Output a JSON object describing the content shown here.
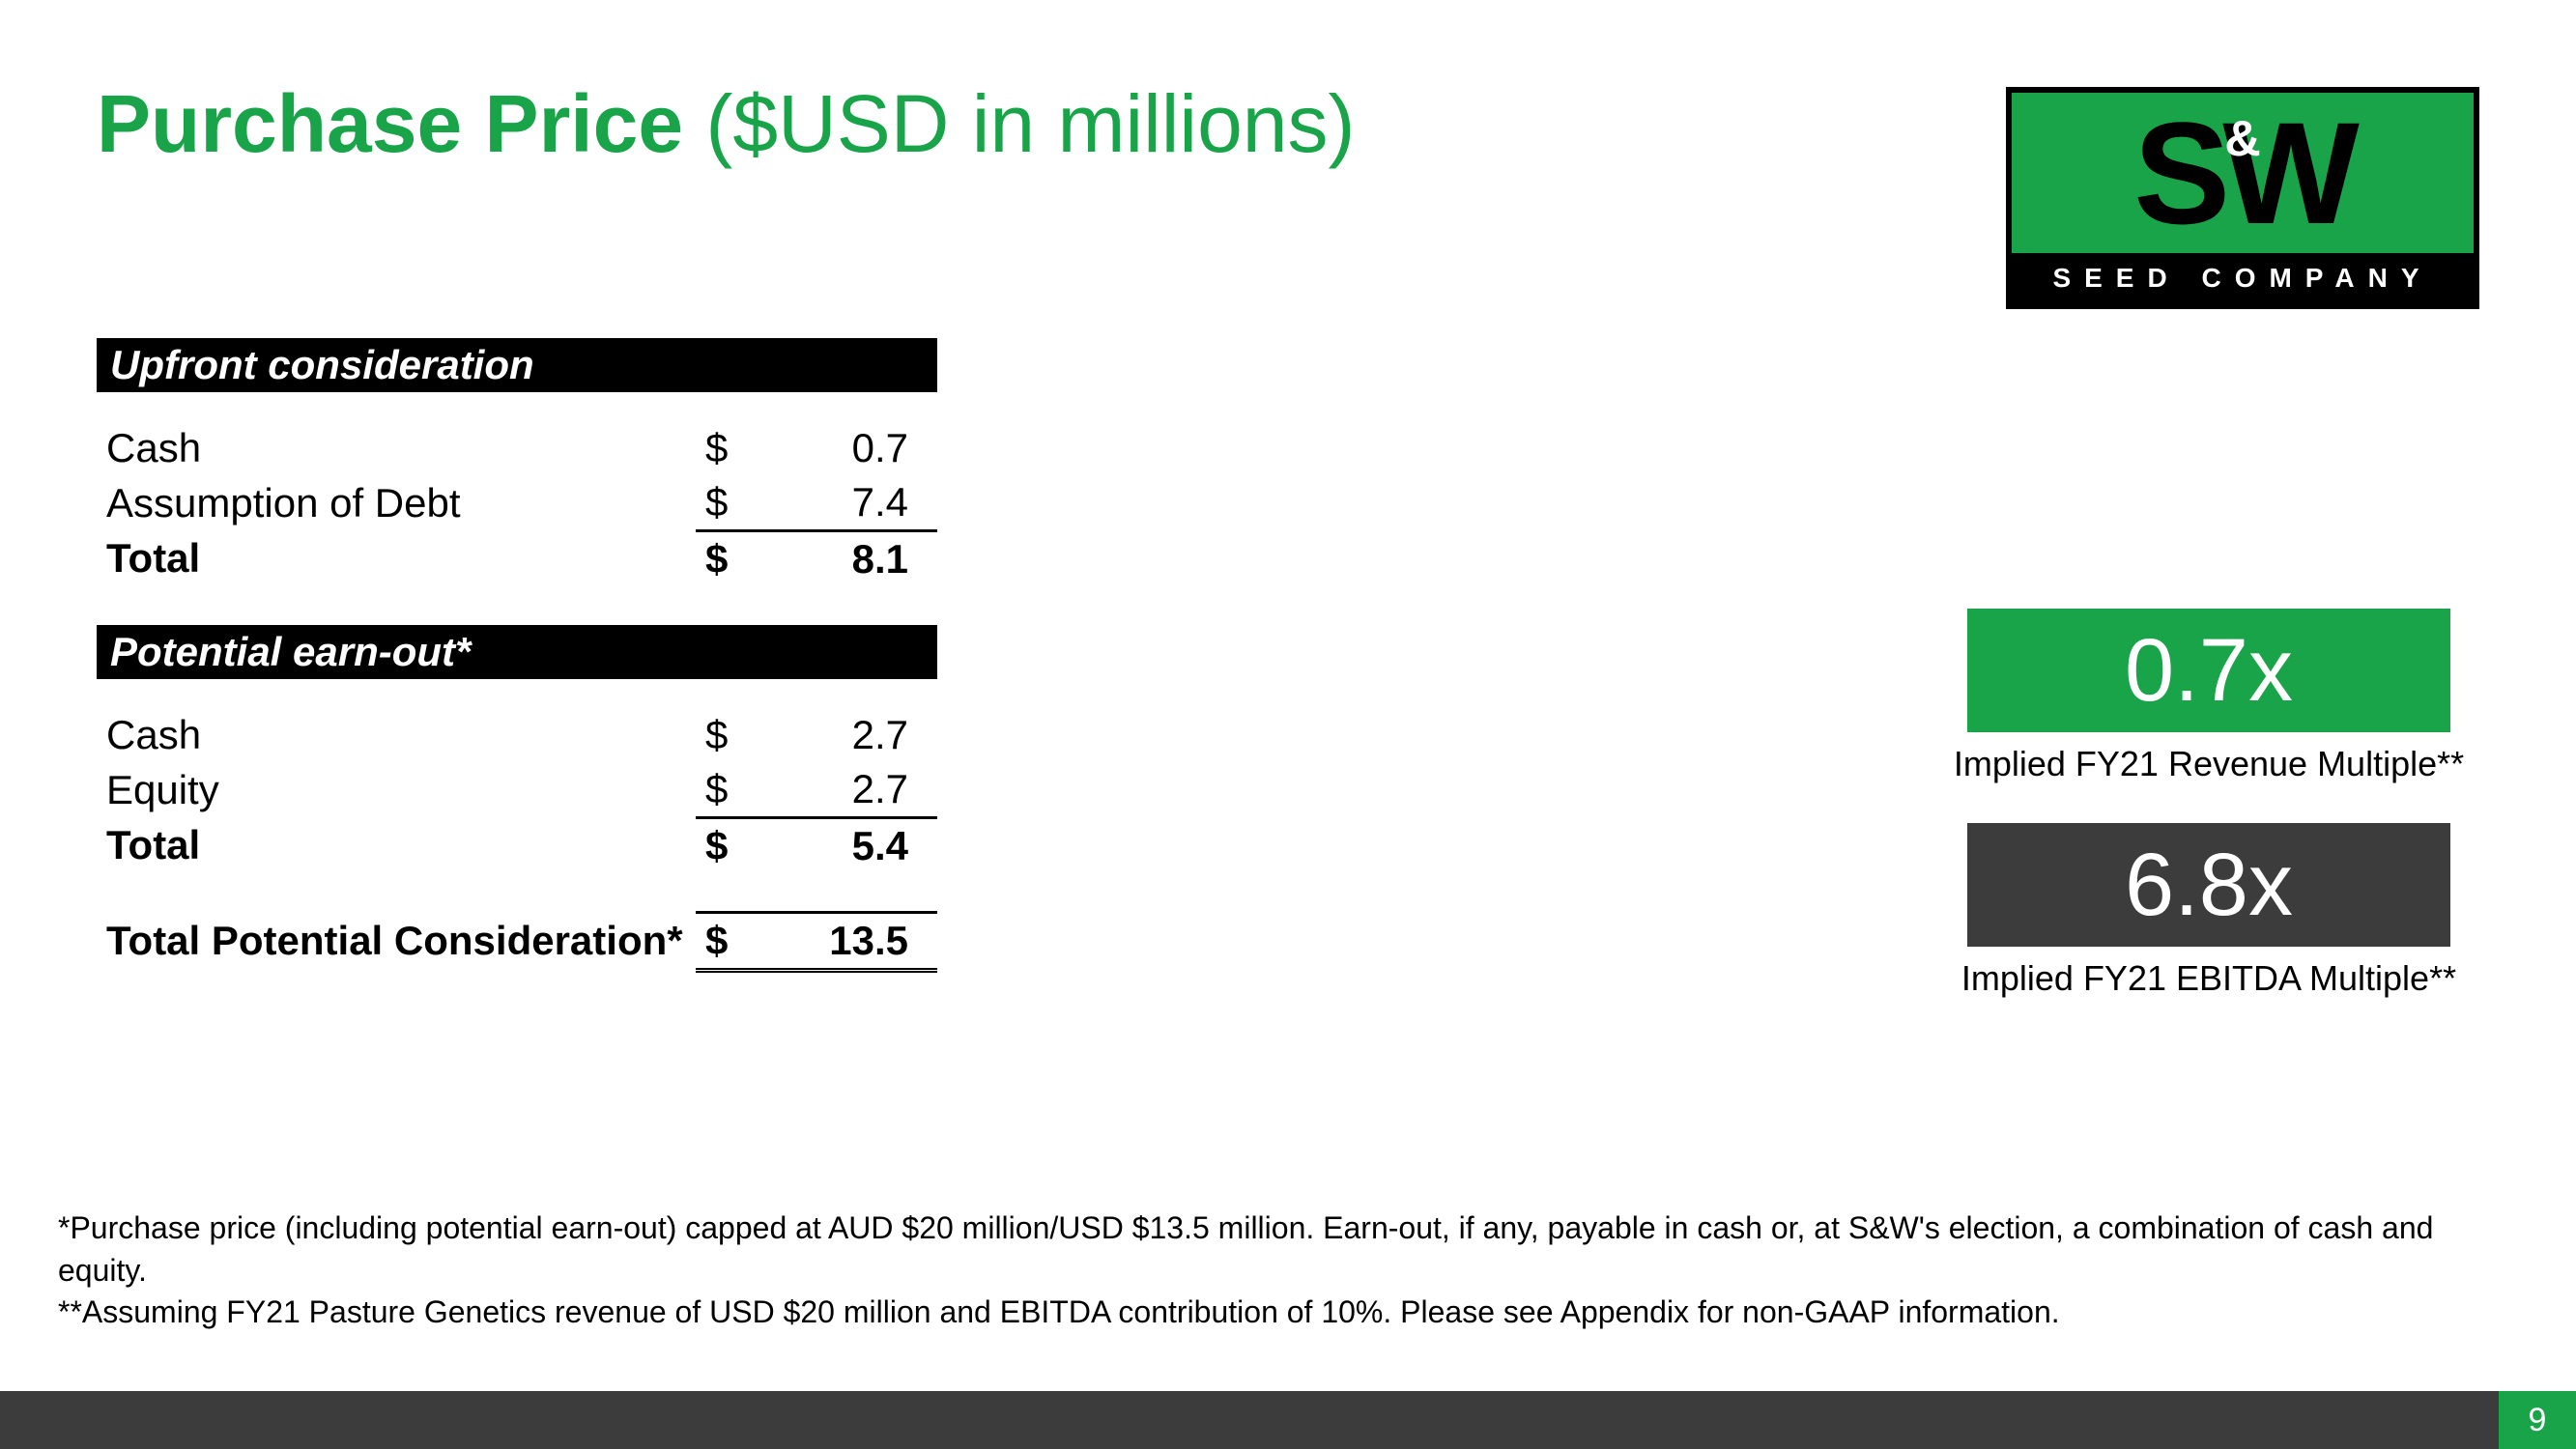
{
  "title": {
    "main": "Purchase Price",
    "sub": "($USD in millions)"
  },
  "logo": {
    "letters": "SW",
    "amp": "&",
    "tagline": "SEED COMPANY"
  },
  "colors": {
    "brand_green": "#19a44a",
    "dark_gray": "#3c3c3c",
    "black": "#000000",
    "white": "#ffffff"
  },
  "sections": {
    "upfront": {
      "header": "Upfront consideration",
      "rows": [
        {
          "label": "Cash",
          "sym": "$",
          "val": "0.7"
        },
        {
          "label": "Assumption of Debt",
          "sym": "$",
          "val": "7.4"
        }
      ],
      "total": {
        "label": "Total",
        "sym": "$",
        "val": "8.1"
      }
    },
    "earnout": {
      "header": "Potential earn-out*",
      "rows": [
        {
          "label": "Cash",
          "sym": "$",
          "val": "2.7"
        },
        {
          "label": "Equity",
          "sym": "$",
          "val": "2.7"
        }
      ],
      "total": {
        "label": "Total",
        "sym": "$",
        "val": "5.4"
      }
    },
    "grand_total": {
      "label": "Total Potential Consideration*",
      "sym": "$",
      "val": "13.5"
    }
  },
  "metrics": {
    "revenue": {
      "value": "0.7x",
      "caption": "Implied FY21 Revenue Multiple**",
      "bg": "#19a44a"
    },
    "ebitda": {
      "value": "6.8x",
      "caption": "Implied FY21 EBITDA Multiple**",
      "bg": "#3c3c3c"
    }
  },
  "footnotes": {
    "n1": "*Purchase price (including potential earn-out) capped at AUD $20 million/USD $13.5 million.  Earn-out, if any, payable in cash or, at S&W's election, a combination of cash and equity.",
    "n2": "**Assuming FY21 Pasture Genetics revenue of USD $20 million and EBITDA contribution of 10%.  Please see Appendix for non-GAAP information."
  },
  "page_number": "9"
}
